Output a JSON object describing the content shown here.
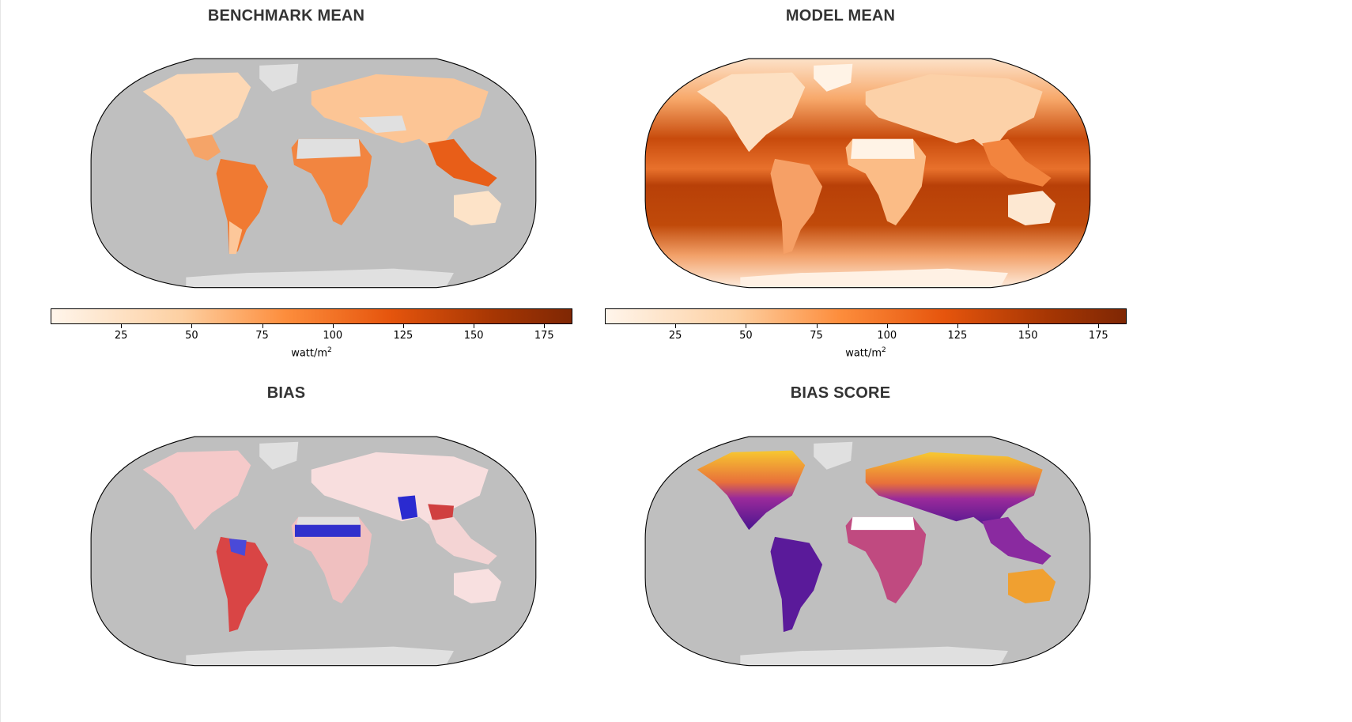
{
  "panels": {
    "benchmark": {
      "title": "BENCHMARK MEAN"
    },
    "model": {
      "title": "MODEL MEAN"
    },
    "bias": {
      "title": "BIAS"
    },
    "bias_score": {
      "title": "BIAS SCORE"
    }
  },
  "colorbars": {
    "benchmark": {
      "ticks": [
        "25",
        "50",
        "75",
        "100",
        "125",
        "150",
        "175"
      ],
      "unit": "watt/m",
      "unit_exp": "2",
      "range": [
        0,
        185
      ]
    },
    "model": {
      "ticks": [
        "25",
        "50",
        "75",
        "100",
        "125",
        "150",
        "175"
      ],
      "unit": "watt/m",
      "unit_exp": "2",
      "range": [
        0,
        185
      ]
    }
  },
  "colors": {
    "background": "#ffffff",
    "ocean_mask": "#bfbfbf",
    "land_nodata": "#e0e0e0",
    "oranges_low": "#fff5eb",
    "oranges_high": "#7f2704",
    "bias_positive": "#cc1010",
    "bias_negative": "#1010cc",
    "score_low": "#3b0f8a",
    "score_high": "#f7e225"
  }
}
